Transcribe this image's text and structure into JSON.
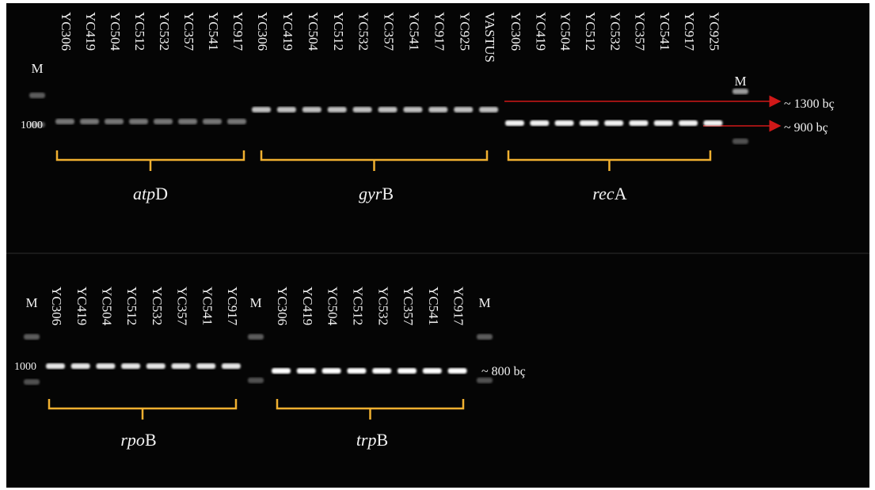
{
  "top_panel": {
    "markers": [
      "M",
      "M"
    ],
    "ladder_label": "1000",
    "groups": [
      {
        "name": {
          "italic": "atp",
          "roman": "D"
        },
        "lanes": [
          "YC306",
          "YC419",
          "YC504",
          "YC512",
          "YC532",
          "YC357",
          "YC541",
          "YC917"
        ]
      },
      {
        "name": {
          "italic": "gyr",
          "roman": "B"
        },
        "lanes": [
          "YC306",
          "YC419",
          "YC504",
          "YC512",
          "YC532",
          "YC357",
          "YC541",
          "YC917",
          "YC925",
          "VASTUS"
        ]
      },
      {
        "name": {
          "italic": "rec",
          "roman": "A"
        },
        "lanes": [
          "YC306",
          "YC419",
          "YC504",
          "YC512",
          "YC532",
          "YC357",
          "YC541",
          "YC917",
          "YC925"
        ]
      }
    ],
    "size_labels": [
      "~ 1300 bç",
      "~ 900 bç"
    ]
  },
  "bottom_panel": {
    "markers": [
      "M",
      "M",
      "M"
    ],
    "ladder_label": "1000",
    "groups": [
      {
        "name": {
          "italic": "rpo",
          "roman": "B"
        },
        "lanes": [
          "YC306",
          "YC419",
          "YC504",
          "YC512",
          "YC532",
          "YC357",
          "YC541",
          "YC917"
        ]
      },
      {
        "name": {
          "italic": "trp",
          "roman": "B"
        },
        "lanes": [
          "YC306",
          "YC419",
          "YC504",
          "YC512",
          "YC532",
          "YC357",
          "YC541",
          "YC917"
        ]
      }
    ],
    "size_labels": [
      "~ 800 bç"
    ]
  }
}
